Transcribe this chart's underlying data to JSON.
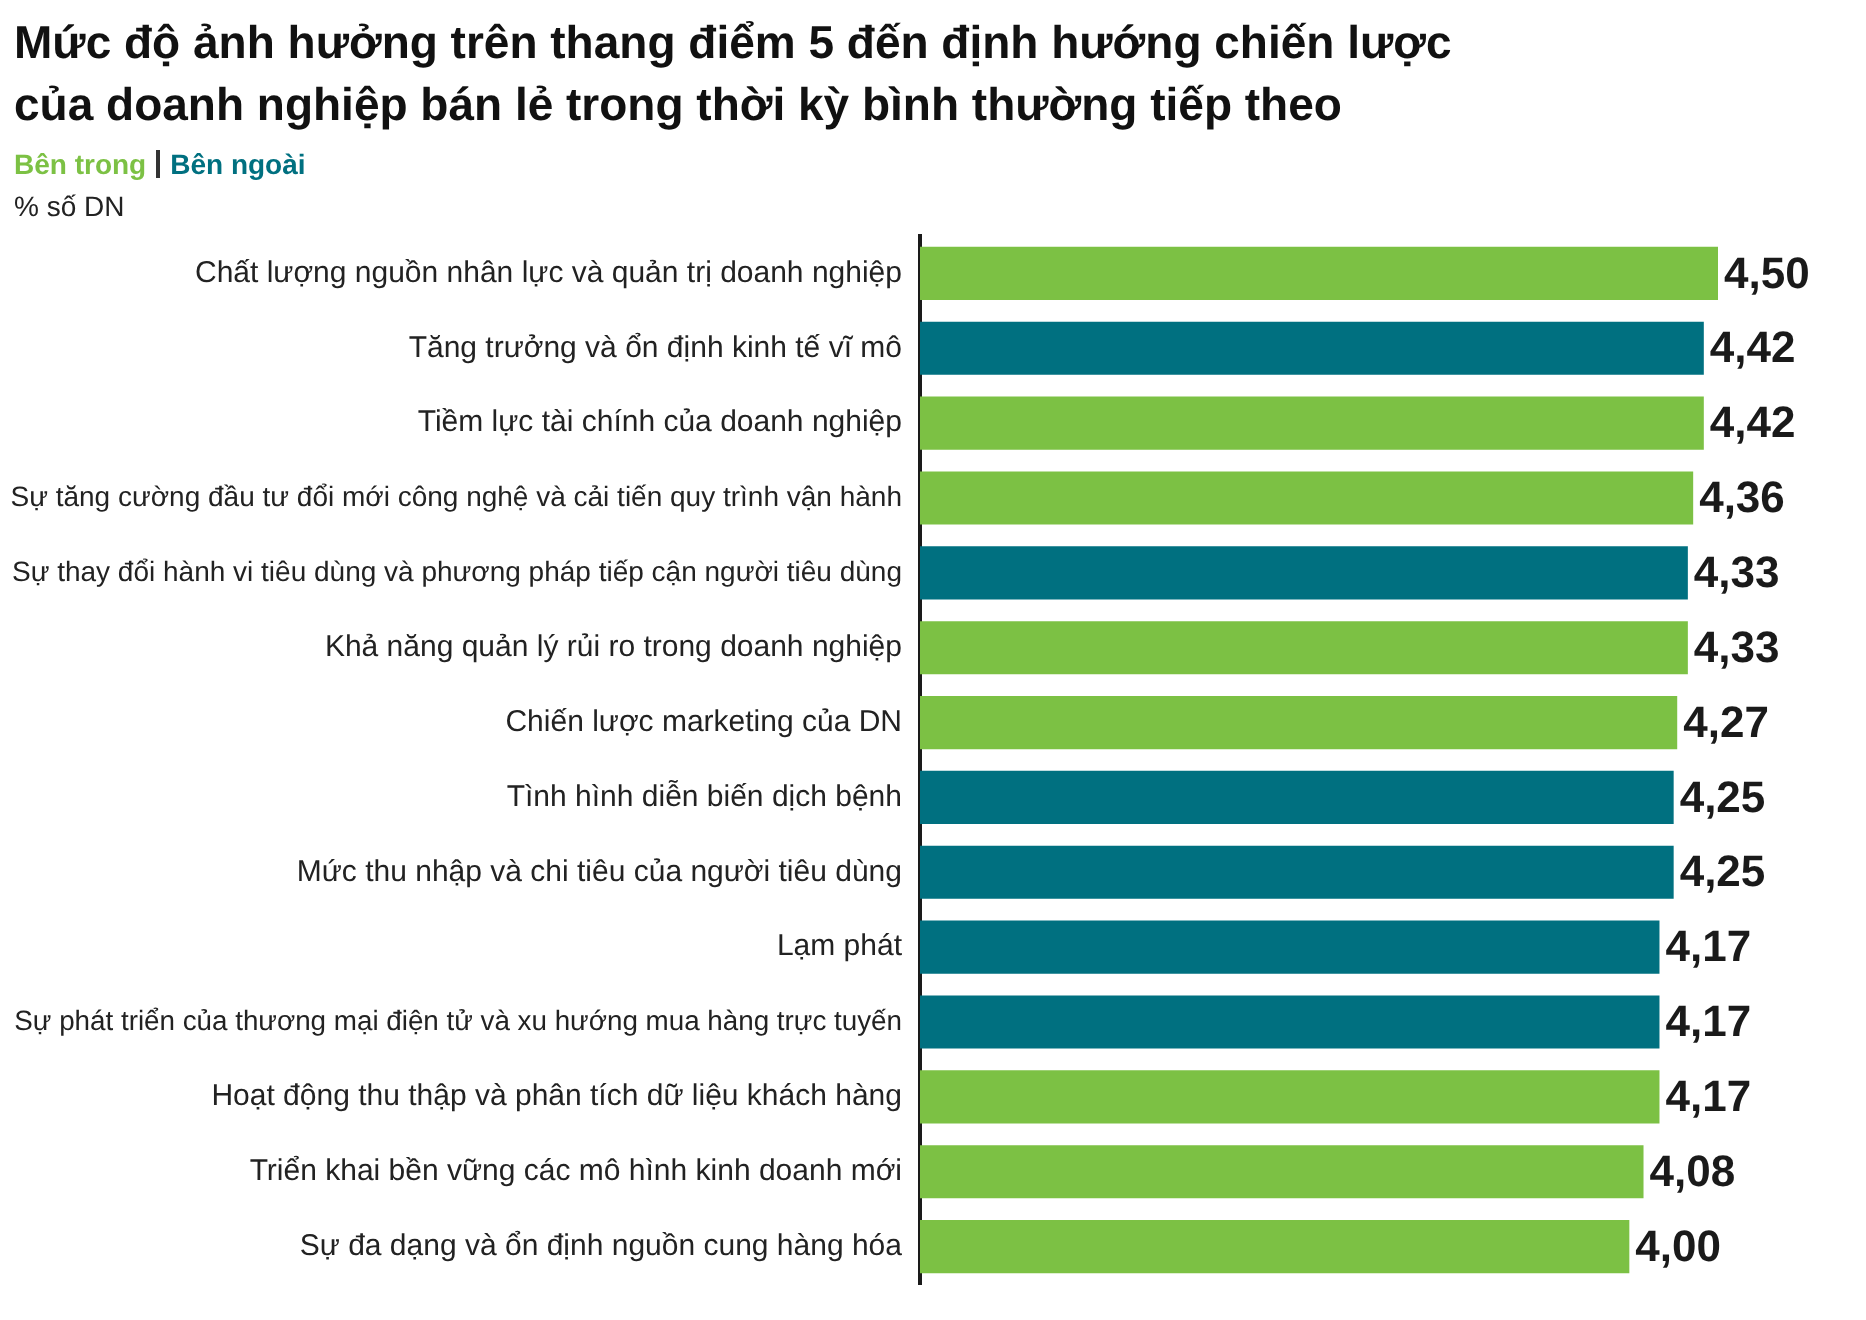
{
  "chart_data": {
    "type": "bar",
    "orientation": "horizontal",
    "title": "Mức độ ảnh hưởng trên thang điểm 5 đến định hướng chiến lược của doanh nghiệp bán lẻ trong thời kỳ bình thường tiếp theo",
    "annotations": [
      "% số DN"
    ],
    "categories": [
      "Chất lượng nguồn nhân lực và quản trị doanh nghiệp",
      "Tăng trưởng và ổn định kinh tế vĩ mô",
      "Tiềm lực tài chính của doanh nghiệp",
      "Sự tăng cường đầu tư đổi mới công nghệ và cải tiến quy trình vận hành",
      "Sự thay đổi hành vi tiêu dùng và phương pháp tiếp cận người tiêu dùng",
      "Khả năng quản lý rủi ro trong doanh nghiệp",
      "Chiến lược marketing của DN",
      "Tình hình diễn biến dịch bệnh",
      "Mức thu nhập và chi tiêu của người tiêu dùng",
      "Lạm phát",
      "Sự phát triển của thương mại điện tử và xu hướng mua hàng trực tuyến",
      "Hoạt động thu thập và phân tích dữ liệu khách hàng",
      "Triển khai bền vững các mô hình kinh doanh mới",
      "Sự đa dạng và ổn định nguồn cung hàng hóa"
    ],
    "series": [
      {
        "name": "Bên trong",
        "color": "#7cc144",
        "values": [
          4.5,
          null,
          4.42,
          4.36,
          null,
          4.33,
          4.27,
          null,
          null,
          null,
          null,
          4.17,
          4.08,
          4.0
        ],
        "value_labels": [
          "4,50",
          null,
          "4,42",
          "4,36",
          null,
          "4,33",
          "4,27",
          null,
          null,
          null,
          null,
          "4,17",
          "4,08",
          "4,00"
        ]
      },
      {
        "name": "Bên ngoài",
        "color": "#007080",
        "values": [
          null,
          4.42,
          null,
          null,
          4.33,
          null,
          null,
          4.25,
          4.25,
          4.17,
          4.17,
          null,
          null,
          null
        ],
        "value_labels": [
          null,
          "4,42",
          null,
          null,
          "4,33",
          null,
          null,
          "4,25",
          "4,25",
          "4,17",
          "4,17",
          null,
          null,
          null
        ]
      }
    ],
    "tick_labels": "y",
    "legend": "top left",
    "grid": false
  }
}
